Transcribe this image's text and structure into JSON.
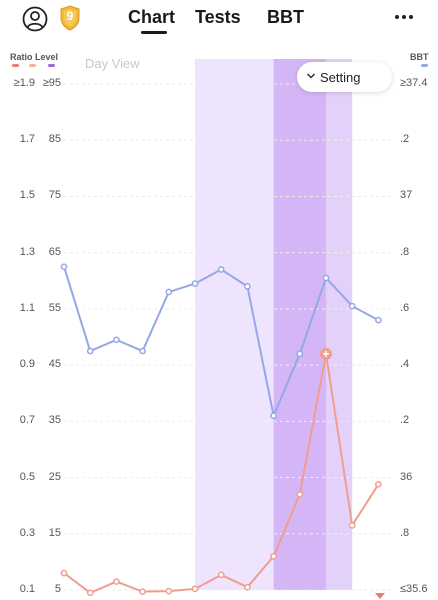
{
  "header": {
    "badge_number": "9",
    "tabs": [
      {
        "label": "Chart",
        "active": true
      },
      {
        "label": "Tests",
        "active": false
      },
      {
        "label": "BBT",
        "active": false
      }
    ]
  },
  "legend": {
    "left_label": "Ratio Level",
    "right_label": "BBT",
    "dash_colors": [
      "#e57c73",
      "#f2b3a2",
      "#9a6be0"
    ],
    "bbt_color": "#95a7e7"
  },
  "axes": {
    "ratio_ticks": [
      "≥1.9",
      "1.7",
      "1.5",
      "1.3",
      "1.1",
      "0.9",
      "0.7",
      "0.5",
      "0.3",
      "0.1"
    ],
    "level_ticks": [
      "≥95",
      "85",
      "75",
      "65",
      "55",
      "45",
      "35",
      "25",
      "15",
      "5"
    ],
    "bbt_ticks": [
      "≥37.4",
      ".2",
      "37",
      ".8",
      ".6",
      ".4",
      ".2",
      "36",
      ".8",
      "≤35.6"
    ]
  },
  "controls": {
    "day_view_label": "Day View",
    "setting_label": "Setting"
  },
  "chart_data": {
    "type": "line",
    "x": [
      1,
      2,
      3,
      4,
      5,
      6,
      7,
      8,
      9,
      10,
      11,
      12,
      13
    ],
    "shaded_bands": [
      {
        "from": 6,
        "to": 9,
        "color": "#efe4fd"
      },
      {
        "from": 9,
        "to": 11,
        "color": "#d4b6f6"
      },
      {
        "from": 11,
        "to": 12,
        "color": "#e3d1fa"
      }
    ],
    "series": [
      {
        "axis": "bbt",
        "color": "#95a7e7",
        "values": [
          36.75,
          36.45,
          36.49,
          36.45,
          36.66,
          36.69,
          36.74,
          36.68,
          36.22,
          36.44,
          36.71,
          36.61,
          36.56
        ]
      },
      {
        "axis": "level",
        "color": "#ef9e8e",
        "values": [
          8,
          4.5,
          6.5,
          4.7,
          4.8,
          5.2,
          7.7,
          5.5,
          11,
          22,
          47,
          16.5,
          23.8
        ],
        "highlight_index": 10
      }
    ],
    "level_range": [
      5,
      95
    ],
    "bbt_range": [
      35.6,
      37.4
    ]
  }
}
